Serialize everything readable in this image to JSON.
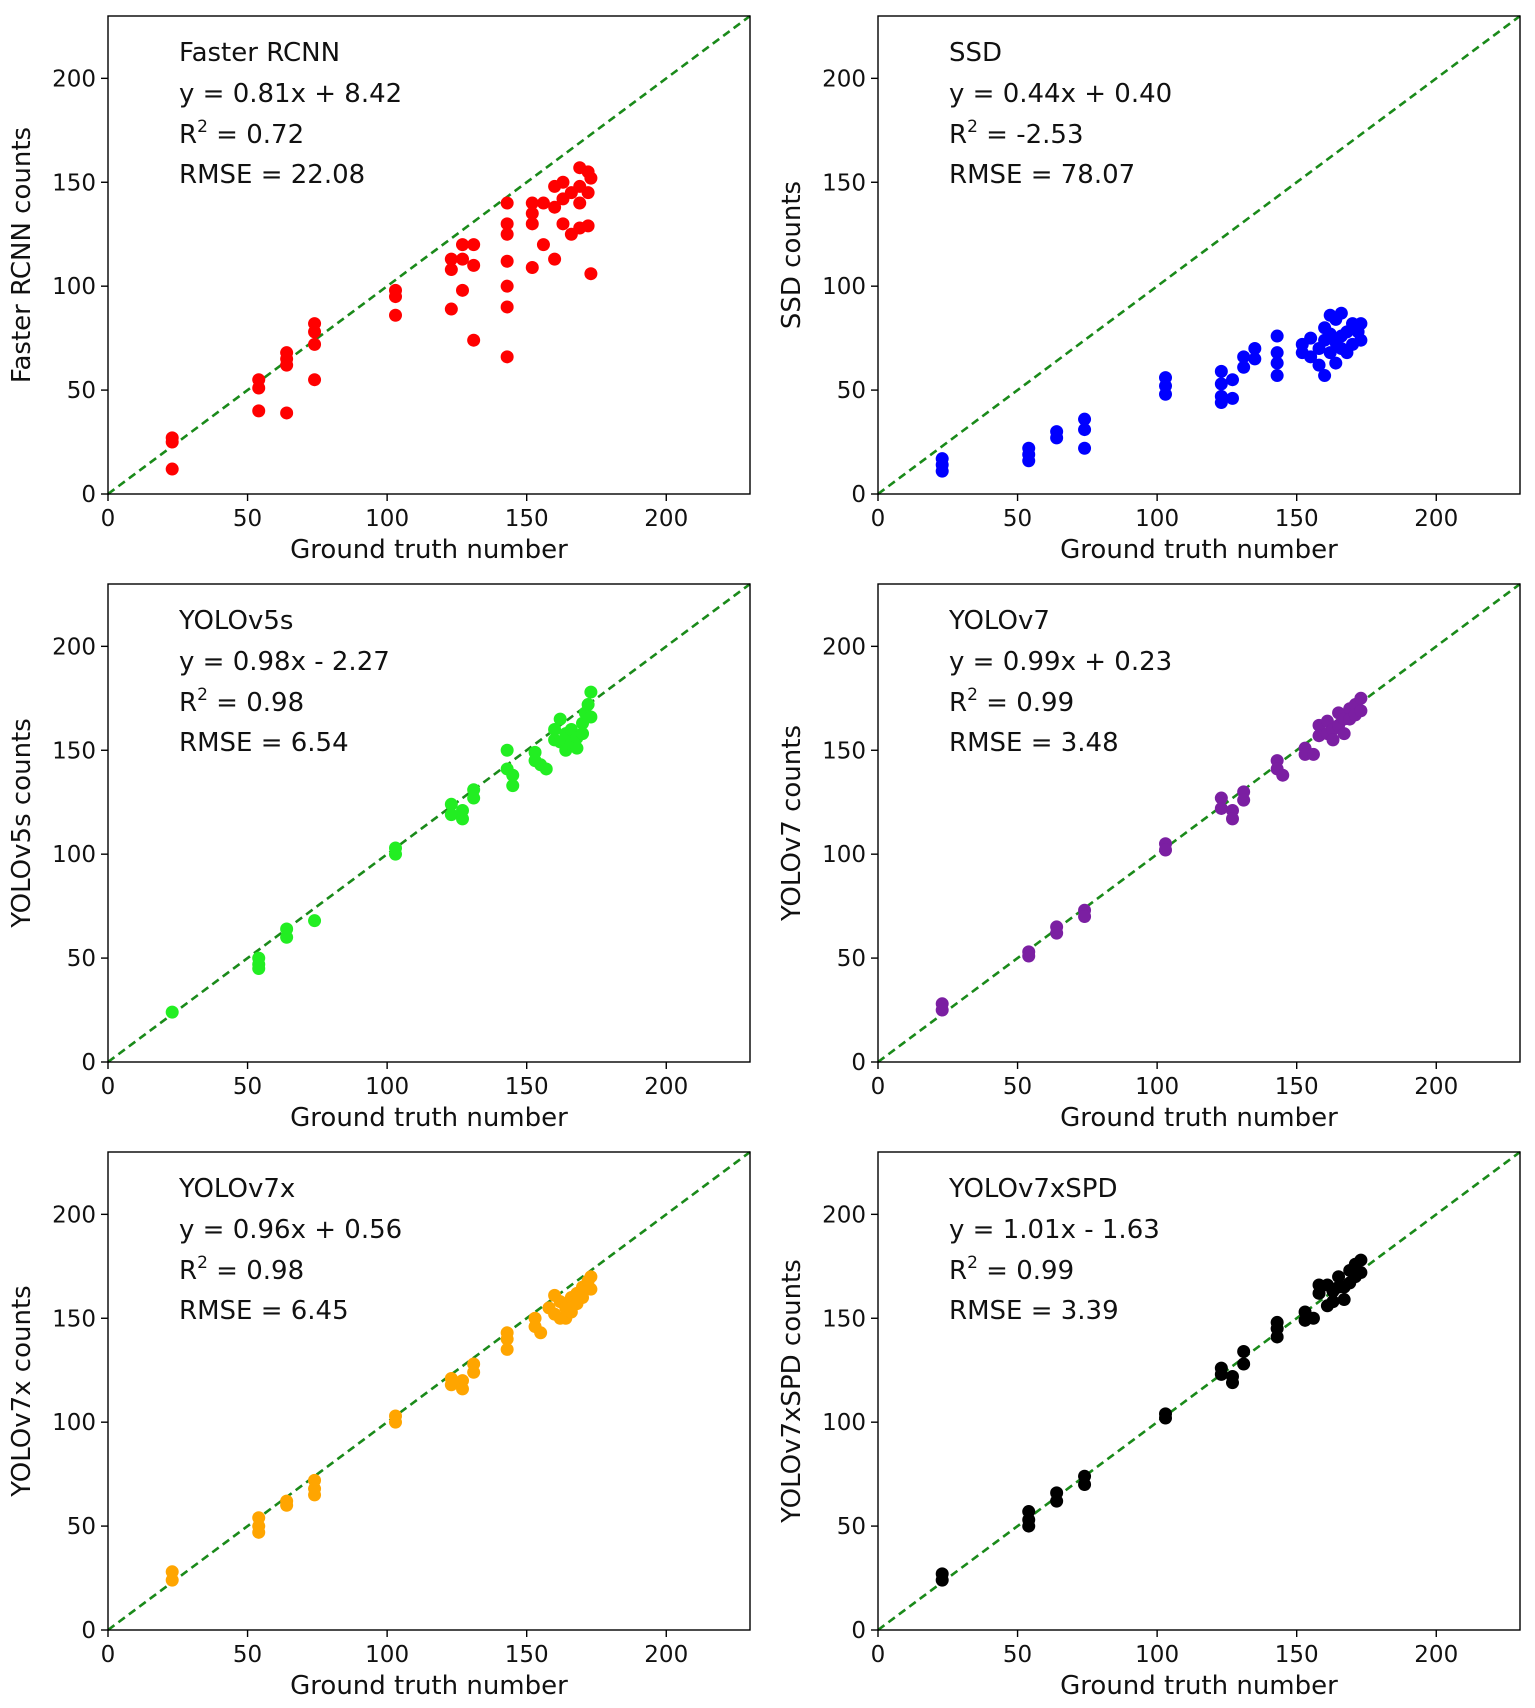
{
  "chart_data": [
    {
      "type": "scatter",
      "title": "Faster RCNN",
      "xlabel": "Ground truth number",
      "ylabel": "Faster RCNN counts",
      "xlim": [
        0,
        230
      ],
      "ylim": [
        0,
        230
      ],
      "xticks": [
        "0",
        "50",
        "100",
        "150",
        "200"
      ],
      "yticks": [
        "0",
        "50",
        "100",
        "150",
        "200"
      ],
      "reference_line": "y = x",
      "color": "#ff0000",
      "annotations": {
        "equation": "y = 0.81x + 8.42",
        "r2_label": "R",
        "r2_value": " = 0.72",
        "rmse": "RMSE = 22.08"
      },
      "points": [
        [
          23,
          27
        ],
        [
          23,
          25
        ],
        [
          23,
          12
        ],
        [
          54,
          55
        ],
        [
          54,
          51
        ],
        [
          54,
          40
        ],
        [
          64,
          68
        ],
        [
          64,
          65
        ],
        [
          64,
          62
        ],
        [
          64,
          39
        ],
        [
          74,
          82
        ],
        [
          74,
          78
        ],
        [
          74,
          72
        ],
        [
          74,
          55
        ],
        [
          103,
          98
        ],
        [
          103,
          95
        ],
        [
          103,
          86
        ],
        [
          123,
          113
        ],
        [
          123,
          108
        ],
        [
          123,
          89
        ],
        [
          127,
          120
        ],
        [
          127,
          113
        ],
        [
          127,
          98
        ],
        [
          131,
          120
        ],
        [
          131,
          110
        ],
        [
          131,
          74
        ],
        [
          143,
          140
        ],
        [
          143,
          130
        ],
        [
          143,
          125
        ],
        [
          143,
          112
        ],
        [
          143,
          100
        ],
        [
          143,
          90
        ],
        [
          143,
          66
        ],
        [
          152,
          140
        ],
        [
          152,
          135
        ],
        [
          152,
          130
        ],
        [
          152,
          109
        ],
        [
          156,
          140
        ],
        [
          156,
          120
        ],
        [
          160,
          148
        ],
        [
          160,
          138
        ],
        [
          160,
          113
        ],
        [
          163,
          150
        ],
        [
          163,
          142
        ],
        [
          163,
          130
        ],
        [
          166,
          145
        ],
        [
          166,
          125
        ],
        [
          169,
          157
        ],
        [
          169,
          148
        ],
        [
          169,
          140
        ],
        [
          169,
          128
        ],
        [
          172,
          155
        ],
        [
          172,
          145
        ],
        [
          172,
          129
        ],
        [
          173,
          152
        ],
        [
          173,
          106
        ]
      ]
    },
    {
      "type": "scatter",
      "title": "SSD",
      "xlabel": "Ground truth number",
      "ylabel": "SSD counts",
      "xlim": [
        0,
        230
      ],
      "ylim": [
        0,
        230
      ],
      "xticks": [
        "0",
        "50",
        "100",
        "150",
        "200"
      ],
      "yticks": [
        "0",
        "50",
        "100",
        "150",
        "200"
      ],
      "reference_line": "y = x",
      "color": "#0000ff",
      "annotations": {
        "equation": "y = 0.44x + 0.40",
        "r2_label": "R",
        "r2_value": " = -2.53",
        "rmse": "RMSE = 78.07"
      },
      "points": [
        [
          23,
          17
        ],
        [
          23,
          14
        ],
        [
          23,
          11
        ],
        [
          54,
          22
        ],
        [
          54,
          19
        ],
        [
          54,
          16
        ],
        [
          64,
          30
        ],
        [
          64,
          27
        ],
        [
          74,
          36
        ],
        [
          74,
          31
        ],
        [
          74,
          22
        ],
        [
          103,
          56
        ],
        [
          103,
          52
        ],
        [
          103,
          48
        ],
        [
          123,
          59
        ],
        [
          123,
          53
        ],
        [
          123,
          47
        ],
        [
          123,
          44
        ],
        [
          127,
          55
        ],
        [
          127,
          46
        ],
        [
          131,
          66
        ],
        [
          131,
          61
        ],
        [
          135,
          70
        ],
        [
          135,
          65
        ],
        [
          143,
          76
        ],
        [
          143,
          68
        ],
        [
          143,
          63
        ],
        [
          143,
          57
        ],
        [
          152,
          72
        ],
        [
          152,
          68
        ],
        [
          155,
          75
        ],
        [
          155,
          66
        ],
        [
          158,
          70
        ],
        [
          158,
          62
        ],
        [
          160,
          80
        ],
        [
          160,
          74
        ],
        [
          160,
          57
        ],
        [
          162,
          86
        ],
        [
          162,
          77
        ],
        [
          162,
          68
        ],
        [
          164,
          84
        ],
        [
          164,
          73
        ],
        [
          164,
          63
        ],
        [
          166,
          87
        ],
        [
          166,
          76
        ],
        [
          166,
          70
        ],
        [
          168,
          78
        ],
        [
          168,
          68
        ],
        [
          170,
          82
        ],
        [
          170,
          72
        ],
        [
          172,
          78
        ],
        [
          173,
          82
        ],
        [
          173,
          74
        ]
      ]
    },
    {
      "type": "scatter",
      "title": "YOLOv5s",
      "xlabel": "Ground truth number",
      "ylabel": "YOLOv5s counts",
      "xlim": [
        0,
        230
      ],
      "ylim": [
        0,
        230
      ],
      "xticks": [
        "0",
        "50",
        "100",
        "150",
        "200"
      ],
      "yticks": [
        "0",
        "50",
        "100",
        "150",
        "200"
      ],
      "reference_line": "y = x",
      "color": "#22ee22",
      "annotations": {
        "equation": "y = 0.98x - 2.27",
        "r2_label": "R",
        "r2_value": " = 0.98",
        "rmse": "RMSE = 6.54"
      },
      "points": [
        [
          23,
          24
        ],
        [
          54,
          50
        ],
        [
          54,
          47
        ],
        [
          54,
          45
        ],
        [
          64,
          64
        ],
        [
          64,
          60
        ],
        [
          74,
          68
        ],
        [
          103,
          103
        ],
        [
          103,
          100
        ],
        [
          123,
          124
        ],
        [
          123,
          119
        ],
        [
          127,
          121
        ],
        [
          127,
          117
        ],
        [
          131,
          131
        ],
        [
          131,
          127
        ],
        [
          143,
          150
        ],
        [
          143,
          141
        ],
        [
          145,
          138
        ],
        [
          145,
          133
        ],
        [
          153,
          149
        ],
        [
          153,
          145
        ],
        [
          155,
          143
        ],
        [
          157,
          141
        ],
        [
          160,
          160
        ],
        [
          160,
          155
        ],
        [
          162,
          165
        ],
        [
          162,
          154
        ],
        [
          164,
          158
        ],
        [
          164,
          150
        ],
        [
          166,
          160
        ],
        [
          166,
          153
        ],
        [
          168,
          156
        ],
        [
          168,
          151
        ],
        [
          170,
          163
        ],
        [
          170,
          158
        ],
        [
          171,
          168
        ],
        [
          172,
          172
        ],
        [
          173,
          178
        ],
        [
          173,
          166
        ]
      ]
    },
    {
      "type": "scatter",
      "title": "YOLOv7",
      "xlabel": "Ground truth number",
      "ylabel": "YOLOv7 counts",
      "xlim": [
        0,
        230
      ],
      "ylim": [
        0,
        230
      ],
      "xticks": [
        "0",
        "50",
        "100",
        "150",
        "200"
      ],
      "yticks": [
        "0",
        "50",
        "100",
        "150",
        "200"
      ],
      "reference_line": "y = x",
      "color": "#7b1fa2",
      "annotations": {
        "equation": "y = 0.99x + 0.23",
        "r2_label": "R",
        "r2_value": " = 0.99",
        "rmse": "RMSE = 3.48"
      },
      "points": [
        [
          23,
          28
        ],
        [
          23,
          25
        ],
        [
          54,
          53
        ],
        [
          54,
          51
        ],
        [
          64,
          65
        ],
        [
          64,
          62
        ],
        [
          74,
          73
        ],
        [
          74,
          70
        ],
        [
          103,
          105
        ],
        [
          103,
          102
        ],
        [
          123,
          127
        ],
        [
          123,
          122
        ],
        [
          127,
          121
        ],
        [
          127,
          117
        ],
        [
          131,
          130
        ],
        [
          131,
          126
        ],
        [
          143,
          145
        ],
        [
          143,
          141
        ],
        [
          145,
          138
        ],
        [
          153,
          151
        ],
        [
          153,
          148
        ],
        [
          156,
          148
        ],
        [
          158,
          162
        ],
        [
          158,
          157
        ],
        [
          161,
          164
        ],
        [
          161,
          158
        ],
        [
          163,
          160
        ],
        [
          163,
          155
        ],
        [
          165,
          168
        ],
        [
          165,
          162
        ],
        [
          167,
          165
        ],
        [
          167,
          158
        ],
        [
          169,
          170
        ],
        [
          169,
          165
        ],
        [
          171,
          172
        ],
        [
          171,
          167
        ],
        [
          173,
          175
        ],
        [
          173,
          169
        ]
      ]
    },
    {
      "type": "scatter",
      "title": "YOLOv7x",
      "xlabel": "Ground truth number",
      "ylabel": "YOLOv7x counts",
      "xlim": [
        0,
        230
      ],
      "ylim": [
        0,
        230
      ],
      "xticks": [
        "0",
        "50",
        "100",
        "150",
        "200"
      ],
      "yticks": [
        "0",
        "50",
        "100",
        "150",
        "200"
      ],
      "reference_line": "y = x",
      "color": "#ffa500",
      "annotations": {
        "equation": "y = 0.96x + 0.56",
        "r2_label": "R",
        "r2_value": " = 0.98",
        "rmse": "RMSE = 6.45"
      },
      "points": [
        [
          23,
          28
        ],
        [
          23,
          24
        ],
        [
          54,
          54
        ],
        [
          54,
          50
        ],
        [
          54,
          47
        ],
        [
          64,
          62
        ],
        [
          64,
          60
        ],
        [
          74,
          72
        ],
        [
          74,
          68
        ],
        [
          74,
          65
        ],
        [
          103,
          103
        ],
        [
          103,
          100
        ],
        [
          123,
          121
        ],
        [
          123,
          118
        ],
        [
          127,
          120
        ],
        [
          127,
          116
        ],
        [
          131,
          128
        ],
        [
          131,
          124
        ],
        [
          143,
          143
        ],
        [
          143,
          140
        ],
        [
          143,
          135
        ],
        [
          153,
          150
        ],
        [
          153,
          146
        ],
        [
          155,
          143
        ],
        [
          158,
          155
        ],
        [
          160,
          161
        ],
        [
          160,
          152
        ],
        [
          162,
          158
        ],
        [
          162,
          150
        ],
        [
          164,
          155
        ],
        [
          164,
          150
        ],
        [
          166,
          160
        ],
        [
          166,
          153
        ],
        [
          168,
          162
        ],
        [
          168,
          157
        ],
        [
          170,
          165
        ],
        [
          170,
          160
        ],
        [
          172,
          168
        ],
        [
          173,
          170
        ],
        [
          173,
          164
        ]
      ]
    },
    {
      "type": "scatter",
      "title": "YOLOv7xSPD",
      "xlabel": "Ground truth number",
      "ylabel": "YOLOv7xSPD counts",
      "xlim": [
        0,
        230
      ],
      "ylim": [
        0,
        230
      ],
      "xticks": [
        "0",
        "50",
        "100",
        "150",
        "200"
      ],
      "yticks": [
        "0",
        "50",
        "100",
        "150",
        "200"
      ],
      "reference_line": "y = x",
      "color": "#000000",
      "annotations": {
        "equation": "y = 1.01x - 1.63",
        "r2_label": "R",
        "r2_value": " = 0.99",
        "rmse": "RMSE = 3.39"
      },
      "points": [
        [
          23,
          27
        ],
        [
          23,
          24
        ],
        [
          54,
          57
        ],
        [
          54,
          53
        ],
        [
          54,
          50
        ],
        [
          64,
          66
        ],
        [
          64,
          62
        ],
        [
          74,
          74
        ],
        [
          74,
          70
        ],
        [
          103,
          104
        ],
        [
          103,
          102
        ],
        [
          123,
          126
        ],
        [
          123,
          123
        ],
        [
          127,
          122
        ],
        [
          127,
          119
        ],
        [
          131,
          134
        ],
        [
          131,
          128
        ],
        [
          143,
          148
        ],
        [
          143,
          145
        ],
        [
          143,
          141
        ],
        [
          153,
          153
        ],
        [
          153,
          149
        ],
        [
          156,
          150
        ],
        [
          158,
          166
        ],
        [
          158,
          162
        ],
        [
          161,
          166
        ],
        [
          161,
          156
        ],
        [
          163,
          163
        ],
        [
          163,
          158
        ],
        [
          165,
          170
        ],
        [
          165,
          165
        ],
        [
          167,
          165
        ],
        [
          167,
          159
        ],
        [
          169,
          173
        ],
        [
          169,
          167
        ],
        [
          171,
          176
        ],
        [
          171,
          170
        ],
        [
          173,
          178
        ],
        [
          173,
          172
        ]
      ]
    }
  ]
}
